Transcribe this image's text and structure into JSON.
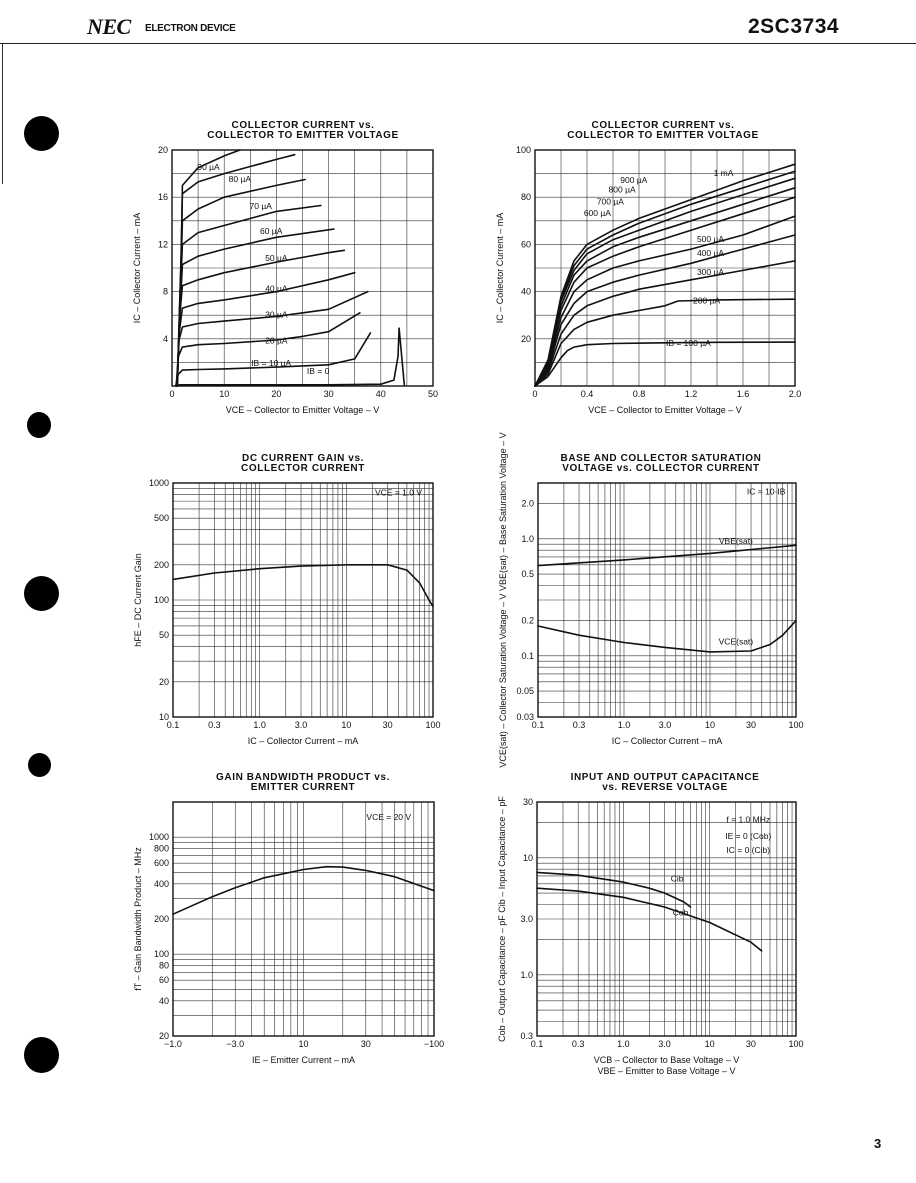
{
  "header": {
    "brand": "NEC",
    "subtitle": "ELECTRON DEVICE",
    "part_number": "2SC3734",
    "page_number": "3"
  },
  "chart_data": [
    {
      "id": "c1",
      "type": "line",
      "title": [
        "COLLECTOR CURRENT vs.",
        "COLLECTOR TO EMITTER VOLTAGE"
      ],
      "xlabel": "VCE – Collector to Emitter Voltage – V",
      "ylabel": "IC – Collector Current – mA",
      "xscale": "linear",
      "yscale": "linear",
      "xlim": [
        0,
        50
      ],
      "ylim": [
        0,
        20
      ],
      "xticks": [
        0,
        10,
        20,
        30,
        40,
        50
      ],
      "yticks": [
        4,
        8,
        12,
        16,
        20
      ],
      "xtick_labels": [
        "0",
        "10",
        "20",
        "30",
        "40",
        "50"
      ],
      "ytick_labels": [
        "4",
        "8",
        "12",
        "16",
        "20"
      ],
      "grid": true,
      "series": [
        {
          "name": "IB = 0",
          "x": [
            0.8,
            1.5,
            10,
            20,
            30,
            40,
            42.5,
            43.3,
            43.5,
            44.5
          ],
          "y": [
            0,
            0.1,
            0.1,
            0.1,
            0.1,
            0.15,
            0.5,
            2.5,
            4.9,
            0.1
          ]
        },
        {
          "name": "IB = 10 µA",
          "x": [
            0.7,
            1.2,
            2,
            5,
            10,
            20,
            30,
            35,
            38
          ],
          "y": [
            0,
            1.0,
            1.35,
            1.4,
            1.45,
            1.6,
            1.8,
            2.3,
            4.5
          ]
        },
        {
          "name": "20 µA",
          "x": [
            0.8,
            1.2,
            2,
            5,
            10,
            20,
            25,
            30,
            36
          ],
          "y": [
            0,
            2.5,
            3.3,
            3.5,
            3.6,
            3.9,
            4.2,
            4.6,
            6.2
          ]
        },
        {
          "name": "30 µA",
          "x": [
            0.9,
            1.3,
            2,
            5,
            10,
            20,
            30,
            37.5
          ],
          "y": [
            0,
            3.8,
            5.0,
            5.3,
            5.5,
            5.9,
            6.5,
            8.0
          ]
        },
        {
          "name": "40 µA",
          "x": [
            1.0,
            1.4,
            2,
            5,
            10,
            20,
            30,
            35
          ],
          "y": [
            0,
            4.6,
            6.6,
            7.0,
            7.3,
            8.0,
            9.0,
            9.6
          ]
        },
        {
          "name": "50 µA",
          "x": [
            1.0,
            1.5,
            2,
            5,
            10,
            20,
            30,
            33
          ],
          "y": [
            0,
            6.0,
            8.5,
            9.0,
            9.6,
            10.5,
            11.3,
            11.5
          ]
        },
        {
          "name": "60 µA",
          "x": [
            1.0,
            1.6,
            2,
            5,
            10,
            20,
            31
          ],
          "y": [
            0,
            7.0,
            10.3,
            11.0,
            11.6,
            12.6,
            13.3
          ]
        },
        {
          "name": "70 µA",
          "x": [
            1.0,
            1.6,
            2,
            5,
            10,
            20,
            28.5
          ],
          "y": [
            0,
            8.0,
            12.0,
            13.0,
            13.6,
            14.8,
            15.3
          ]
        },
        {
          "name": "80 µA",
          "x": [
            1.0,
            1.7,
            2,
            5,
            10,
            20,
            25.5
          ],
          "y": [
            0,
            9.5,
            14.0,
            15.0,
            16.0,
            17.0,
            17.5
          ]
        },
        {
          "name": "90 µA",
          "x": [
            1.0,
            1.7,
            2,
            5,
            10,
            20,
            23.5
          ],
          "y": [
            0,
            10.5,
            16.3,
            17.3,
            18.0,
            19.2,
            19.6
          ]
        },
        {
          "name": "",
          "x": [
            1.0,
            1.8,
            2,
            5,
            10,
            13
          ],
          "y": [
            0,
            11.5,
            17.0,
            18.5,
            19.5,
            20.0
          ]
        }
      ],
      "annotations": [
        {
          "text": "IB = 10 µA",
          "x": 19,
          "y": 1.7
        },
        {
          "text": "IB = 0",
          "x": 28,
          "y": 1.0
        },
        {
          "text": "20 µA",
          "x": 20,
          "y": 3.6
        },
        {
          "text": "30 µA",
          "x": 20,
          "y": 5.8
        },
        {
          "text": "40 µA",
          "x": 20,
          "y": 8.0
        },
        {
          "text": "50 µA",
          "x": 20,
          "y": 10.6
        },
        {
          "text": "60 µA",
          "x": 19,
          "y": 12.9
        },
        {
          "text": "70 µA",
          "x": 17,
          "y": 15.0
        },
        {
          "text": "80 µA",
          "x": 13,
          "y": 17.3
        },
        {
          "text": "90 µA",
          "x": 7,
          "y": 18.3
        }
      ]
    },
    {
      "id": "c2",
      "type": "line",
      "title": [
        "COLLECTOR CURRENT vs.",
        "COLLECTOR TO EMITTER VOLTAGE"
      ],
      "xlabel": "VCE – Collector to Emitter Voltage – V",
      "ylabel": "IC – Collector Current – mA",
      "xscale": "linear",
      "yscale": "linear",
      "xlim": [
        0,
        2.0
      ],
      "ylim": [
        0,
        100
      ],
      "xticks": [
        0,
        0.4,
        0.8,
        1.2,
        1.6,
        2.0
      ],
      "yticks": [
        20,
        40,
        60,
        80,
        100
      ],
      "xtick_labels": [
        "0",
        "0.4",
        "0.8",
        "1.2",
        "1.6",
        "2.0"
      ],
      "ytick_labels": [
        "20",
        "40",
        "60",
        "80",
        "100"
      ],
      "grid": true,
      "series": [
        {
          "name": "IB = 100 µA",
          "x": [
            0,
            0.1,
            0.2,
            0.25,
            0.3,
            0.4,
            0.6,
            1.0,
            1.4,
            2.0
          ],
          "y": [
            0,
            4,
            12,
            15,
            16.5,
            17.5,
            18,
            18.3,
            18.5,
            18.6
          ]
        },
        {
          "name": "200 µA",
          "x": [
            0,
            0.1,
            0.2,
            0.3,
            0.4,
            0.6,
            0.8,
            1.0,
            1.1,
            1.4,
            2.0
          ],
          "y": [
            0,
            5,
            18,
            24,
            27,
            30,
            32,
            34,
            36,
            36.5,
            36.8
          ]
        },
        {
          "name": "300 µA",
          "x": [
            0,
            0.1,
            0.2,
            0.3,
            0.4,
            0.6,
            0.8,
            1.2,
            1.6,
            2.0
          ],
          "y": [
            0,
            6,
            22,
            30,
            34,
            38,
            41,
            45,
            49,
            53
          ]
        },
        {
          "name": "400 µA",
          "x": [
            0,
            0.1,
            0.2,
            0.3,
            0.4,
            0.6,
            0.8,
            1.2,
            1.6,
            2.0
          ],
          "y": [
            0,
            7,
            26,
            35,
            40,
            44,
            47,
            52,
            58,
            64
          ]
        },
        {
          "name": "500 µA",
          "x": [
            0,
            0.1,
            0.2,
            0.3,
            0.4,
            0.6,
            0.8,
            1.2,
            1.6,
            2.0
          ],
          "y": [
            0,
            8,
            29,
            40,
            45,
            50,
            53,
            58,
            64,
            72
          ]
        },
        {
          "name": "600 µA",
          "x": [
            0,
            0.1,
            0.2,
            0.3,
            0.4,
            0.6,
            0.8,
            1.2,
            1.6,
            2.0
          ],
          "y": [
            0,
            9,
            32,
            44,
            50,
            55,
            59,
            66,
            73,
            80
          ]
        },
        {
          "name": "700 µA",
          "x": [
            0,
            0.1,
            0.2,
            0.3,
            0.4,
            0.6,
            0.8,
            1.2,
            1.6,
            2.0
          ],
          "y": [
            0,
            9.5,
            34,
            47,
            53,
            59,
            63,
            70,
            77,
            84
          ]
        },
        {
          "name": "800 µA",
          "x": [
            0,
            0.1,
            0.2,
            0.3,
            0.4,
            0.6,
            0.8,
            1.2,
            1.6,
            2.0
          ],
          "y": [
            0,
            10,
            36,
            49,
            56,
            62,
            66,
            74,
            81,
            88
          ]
        },
        {
          "name": "900 µA",
          "x": [
            0,
            0.1,
            0.2,
            0.3,
            0.4,
            0.6,
            0.8,
            1.2,
            1.6,
            2.0
          ],
          "y": [
            0,
            10.5,
            37,
            51,
            58,
            64,
            69,
            77,
            84,
            91
          ]
        },
        {
          "name": "1 mA",
          "x": [
            0,
            0.1,
            0.2,
            0.3,
            0.4,
            0.6,
            0.8,
            1.2,
            1.6,
            2.0
          ],
          "y": [
            0,
            11,
            38,
            53,
            60,
            66,
            71,
            79,
            87,
            94
          ]
        }
      ],
      "annotations": [
        {
          "text": "IB = 100 µA",
          "x": 1.18,
          "y": 17
        },
        {
          "text": "200 µA",
          "x": 1.32,
          "y": 35
        },
        {
          "text": "300 µA",
          "x": 1.35,
          "y": 47
        },
        {
          "text": "400 µA",
          "x": 1.35,
          "y": 55
        },
        {
          "text": "500 µA",
          "x": 1.35,
          "y": 61
        },
        {
          "text": "600 µA",
          "x": 0.48,
          "y": 72
        },
        {
          "text": "700 µA",
          "x": 0.58,
          "y": 77
        },
        {
          "text": "800 µA",
          "x": 0.67,
          "y": 82
        },
        {
          "text": "900 µA",
          "x": 0.76,
          "y": 86
        },
        {
          "text": "1 mA",
          "x": 1.45,
          "y": 89
        }
      ]
    },
    {
      "id": "c3",
      "type": "line",
      "title": [
        "DC CURRENT GAIN vs.",
        "COLLECTOR CURRENT"
      ],
      "xlabel": "IC – Collector Current – mA",
      "ylabel": "hFE – DC Current Gain",
      "xscale": "log",
      "yscale": "log",
      "xlim": [
        0.1,
        100
      ],
      "ylim": [
        10,
        1000
      ],
      "xticks": [
        0.1,
        0.3,
        1,
        3,
        10,
        30,
        100
      ],
      "yticks": [
        10,
        20,
        50,
        100,
        200,
        500,
        1000
      ],
      "xtick_labels": [
        "0.1",
        "0.3",
        "1.0",
        "3.0",
        "10",
        "30",
        "100"
      ],
      "ytick_labels": [
        "10",
        "20",
        "50",
        "100",
        "200",
        "500",
        "1000"
      ],
      "grid": true,
      "series": [
        {
          "name": "",
          "x": [
            0.1,
            0.3,
            1,
            3,
            10,
            30,
            50,
            70,
            90,
            100
          ],
          "y": [
            150,
            170,
            185,
            195,
            200,
            200,
            180,
            140,
            100,
            88
          ]
        }
      ],
      "annotations": [
        {
          "text": "VCE = 1.0 V",
          "x": 40,
          "y": 780
        }
      ]
    },
    {
      "id": "c4",
      "type": "line",
      "title": [
        "BASE AND COLLECTOR SATURATION",
        "VOLTAGE vs. COLLECTOR CURRENT"
      ],
      "xlabel": "IC – Collector Current – mA",
      "ylabel": "VCE(sat) – Collector Saturation Voltage – V   VBE(sat) – Base Saturation Voltage – V",
      "xscale": "log",
      "yscale": "log",
      "xlim": [
        0.1,
        100
      ],
      "ylim": [
        0.03,
        3
      ],
      "xticks": [
        0.1,
        0.3,
        1,
        3,
        10,
        30,
        100
      ],
      "yticks": [
        0.03,
        0.05,
        0.1,
        0.2,
        0.5,
        1,
        2
      ],
      "xtick_labels": [
        "0.1",
        "0.3",
        "1.0",
        "3.0",
        "10",
        "30",
        "100"
      ],
      "ytick_labels": [
        "0.03",
        "0.05",
        "0.1",
        "0.2",
        "0.5",
        "1.0",
        "2.0"
      ],
      "grid": true,
      "series": [
        {
          "name": "VBE(sat)",
          "x": [
            0.1,
            1,
            10,
            100
          ],
          "y": [
            0.59,
            0.66,
            0.75,
            0.88
          ]
        },
        {
          "name": "VCE(sat)",
          "x": [
            0.1,
            0.3,
            1,
            3,
            10,
            30,
            50,
            70,
            100
          ],
          "y": [
            0.18,
            0.15,
            0.13,
            0.118,
            0.108,
            0.11,
            0.125,
            0.15,
            0.2
          ]
        }
      ],
      "annotations": [
        {
          "text": "IC = 10·IB",
          "x": 45,
          "y": 2.4
        },
        {
          "text": "VBE(sat)",
          "x": 20,
          "y": 0.9
        },
        {
          "text": "VCE(sat)",
          "x": 20,
          "y": 0.125
        }
      ]
    },
    {
      "id": "c5",
      "type": "line",
      "title": [
        "GAIN BANDWIDTH PRODUCT vs.",
        "EMITTER CURRENT"
      ],
      "xlabel": "IE – Emitter Current – mA",
      "ylabel": "fT – Gain Bandwidth Product – MHz",
      "xscale": "log",
      "yscale": "log",
      "xlim": [
        -1.0,
        -100
      ],
      "ylim": [
        20,
        2000
      ],
      "xticks": [
        -1,
        -3,
        -10,
        -30,
        -100
      ],
      "yticks": [
        20,
        40,
        60,
        80,
        100,
        200,
        400,
        600,
        800,
        1000
      ],
      "xtick_labels": [
        "−1.0",
        "−3.0",
        "10",
        "30",
        "−100"
      ],
      "ytick_labels": [
        "20",
        "40",
        "60",
        "80",
        "100",
        "200",
        "400",
        "600",
        "800",
        "1000"
      ],
      "grid": true,
      "series": [
        {
          "name": "",
          "x": [
            -1,
            -2,
            -3,
            -5,
            -10,
            -15,
            -20,
            -30,
            -50,
            -100
          ],
          "y": [
            220,
            310,
            370,
            450,
            530,
            560,
            555,
            520,
            460,
            350
          ]
        }
      ],
      "annotations": [
        {
          "text": "VCE = 20 V",
          "x": -45,
          "y": 1400
        }
      ]
    },
    {
      "id": "c6",
      "type": "line",
      "title": [
        "INPUT AND OUTPUT CAPACITANCE",
        "vs. REVERSE VOLTAGE"
      ],
      "xlabel": [
        "VCB – Collector to Base Voltage – V",
        "VBE – Emitter to Base Voltage – V"
      ],
      "ylabel": "Cob – Output Capacitance – pF   Cib – Input Capacitance – pF",
      "xscale": "log",
      "yscale": "log",
      "xlim": [
        0.1,
        100
      ],
      "ylim": [
        0.3,
        30
      ],
      "xticks": [
        0.1,
        0.3,
        1,
        3,
        10,
        30,
        100
      ],
      "yticks": [
        0.3,
        1,
        3,
        10,
        30
      ],
      "xtick_labels": [
        "0.1",
        "0.3",
        "1.0",
        "3.0",
        "10",
        "30",
        "100"
      ],
      "ytick_labels": [
        "0.3",
        "1.0",
        "3.0",
        "10",
        "30"
      ],
      "grid": true,
      "series": [
        {
          "name": "Cib",
          "x": [
            0.1,
            0.3,
            1,
            2,
            3,
            5,
            6
          ],
          "y": [
            7.5,
            7.1,
            6.2,
            5.5,
            5.0,
            4.2,
            3.8
          ]
        },
        {
          "name": "Cob",
          "x": [
            0.1,
            0.3,
            1,
            3,
            10,
            30,
            40
          ],
          "y": [
            5.5,
            5.2,
            4.6,
            3.8,
            2.8,
            1.9,
            1.6
          ]
        }
      ],
      "annotations": [
        {
          "text": "f = 1.0 MHz",
          "x": 28,
          "y": 20
        },
        {
          "text": "IE = 0 (Cob)",
          "x": 28,
          "y": 14.5
        },
        {
          "text": "IC = 0 (Cib)",
          "x": 28,
          "y": 11
        },
        {
          "text": "Cib",
          "x": 4.2,
          "y": 6.3
        },
        {
          "text": "Cob",
          "x": 4.6,
          "y": 3.2
        }
      ]
    }
  ]
}
